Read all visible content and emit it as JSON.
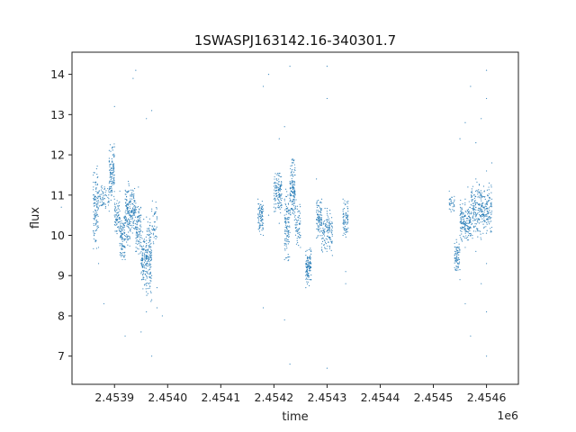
{
  "chart_data": {
    "type": "scatter",
    "title": "1SWASPJ163142.16-340301.7",
    "xlabel": "time",
    "ylabel": "flux",
    "x_multiplier_label": "1e6",
    "x_multiplier": 1000000,
    "xlim": [
      2.45382,
      2.45466
    ],
    "ylim": [
      6.3,
      14.55
    ],
    "x_ticks": [
      2.4539,
      2.454,
      2.4541,
      2.4542,
      2.4543,
      2.4544,
      2.4545,
      2.4546
    ],
    "x_tick_labels": [
      "2.4539",
      "2.4540",
      "2.4541",
      "2.4542",
      "2.4543",
      "2.4544",
      "2.4545",
      "2.4546"
    ],
    "y_ticks": [
      7,
      8,
      9,
      10,
      11,
      12,
      13,
      14
    ],
    "y_tick_labels": [
      "7",
      "8",
      "9",
      "10",
      "11",
      "12",
      "13",
      "14"
    ],
    "grid": false,
    "point_color": "#1f77b4",
    "series": [
      {
        "points": [
          [
            2.45386,
            11.5
          ],
          [
            2.45386,
            11.0
          ],
          [
            2.453865,
            10.6
          ],
          [
            2.45387,
            10.2
          ],
          [
            2.45387,
            9.7
          ],
          [
            2.45387,
            9.3
          ],
          [
            2.45388,
            8.3
          ],
          [
            2.453875,
            11.2
          ],
          [
            2.45388,
            10.8
          ],
          [
            2.4538,
            10.7
          ],
          [
            2.45389,
            11.3
          ],
          [
            2.45389,
            10.6
          ],
          [
            2.453895,
            11.9
          ],
          [
            2.4539,
            12.2
          ],
          [
            2.4539,
            11.5
          ],
          [
            2.4539,
            10.9
          ],
          [
            2.4539,
            13.2
          ],
          [
            2.45391,
            11.1
          ],
          [
            2.45391,
            10.4
          ],
          [
            2.45391,
            9.8
          ],
          [
            2.453915,
            9.5
          ],
          [
            2.45392,
            10.3
          ],
          [
            2.45392,
            9.9
          ],
          [
            2.45392,
            9.4
          ],
          [
            2.45392,
            7.5
          ],
          [
            2.45393,
            11.0
          ],
          [
            2.45393,
            10.5
          ],
          [
            2.45393,
            10.1
          ],
          [
            2.453935,
            13.9
          ],
          [
            2.45394,
            10.8
          ],
          [
            2.45394,
            10.2
          ],
          [
            2.45394,
            9.6
          ],
          [
            2.45394,
            14.1
          ],
          [
            2.453945,
            11.2
          ],
          [
            2.45395,
            10.5
          ],
          [
            2.45395,
            10.0
          ],
          [
            2.45395,
            9.3
          ],
          [
            2.45395,
            7.6
          ],
          [
            2.453955,
            10.4
          ],
          [
            2.45396,
            9.8
          ],
          [
            2.45396,
            9.0
          ],
          [
            2.45396,
            8.6
          ],
          [
            2.45396,
            8.1
          ],
          [
            2.45396,
            12.9
          ],
          [
            2.453965,
            10.1
          ],
          [
            2.45397,
            9.5
          ],
          [
            2.45397,
            9.0
          ],
          [
            2.45397,
            8.4
          ],
          [
            2.45397,
            10.6
          ],
          [
            2.45397,
            13.1
          ],
          [
            2.45397,
            7.0
          ],
          [
            2.45398,
            8.7
          ],
          [
            2.45398,
            8.2
          ],
          [
            2.45399,
            8.0
          ],
          [
            2.45417,
            10.9
          ],
          [
            2.45418,
            10.6
          ],
          [
            2.45418,
            10.3
          ],
          [
            2.45418,
            10.0
          ],
          [
            2.45418,
            8.2
          ],
          [
            2.45418,
            13.7
          ],
          [
            2.45419,
            10.5
          ],
          [
            2.45419,
            14.0
          ],
          [
            2.4542,
            11.3
          ],
          [
            2.4542,
            10.9
          ],
          [
            2.4542,
            10.7
          ],
          [
            2.454205,
            11.4
          ],
          [
            2.45421,
            11.0
          ],
          [
            2.45421,
            12.4
          ],
          [
            2.45421,
            10.3
          ],
          [
            2.45422,
            10.9
          ],
          [
            2.45422,
            10.5
          ],
          [
            2.45422,
            9.8
          ],
          [
            2.45422,
            9.4
          ],
          [
            2.45422,
            7.9
          ],
          [
            2.45422,
            12.7
          ],
          [
            2.45423,
            11.3
          ],
          [
            2.45423,
            11.0
          ],
          [
            2.45423,
            10.6
          ],
          [
            2.45423,
            6.8
          ],
          [
            2.45423,
            14.2
          ],
          [
            2.454235,
            11.9
          ],
          [
            2.45424,
            11.5
          ],
          [
            2.45424,
            10.7
          ],
          [
            2.45424,
            11.0
          ],
          [
            2.45425,
            10.0
          ],
          [
            2.45425,
            9.7
          ],
          [
            2.45426,
            9.6
          ],
          [
            2.45426,
            9.3
          ],
          [
            2.45426,
            9.0
          ],
          [
            2.45426,
            8.7
          ],
          [
            2.45427,
            9.2
          ],
          [
            2.45427,
            8.9
          ],
          [
            2.45427,
            9.6
          ],
          [
            2.45428,
            10.8
          ],
          [
            2.45428,
            10.4
          ],
          [
            2.45428,
            11.4
          ],
          [
            2.45429,
            10.9
          ],
          [
            2.45429,
            10.5
          ],
          [
            2.45429,
            10.1
          ],
          [
            2.45429,
            9.7
          ],
          [
            2.4543,
            10.6
          ],
          [
            2.4543,
            10.2
          ],
          [
            2.4543,
            9.9
          ],
          [
            2.4543,
            6.7
          ],
          [
            2.4543,
            14.2
          ],
          [
            2.4543,
            13.4
          ],
          [
            2.45431,
            10.3
          ],
          [
            2.45431,
            9.5
          ],
          [
            2.45433,
            10.9
          ],
          [
            2.45433,
            10.6
          ],
          [
            2.45433,
            10.3
          ],
          [
            2.45433,
            10.0
          ],
          [
            2.454335,
            9.1
          ],
          [
            2.454335,
            8.8
          ],
          [
            2.45453,
            11.1
          ],
          [
            2.45453,
            10.8
          ],
          [
            2.45454,
            9.8
          ],
          [
            2.45454,
            9.5
          ],
          [
            2.45454,
            9.2
          ],
          [
            2.45455,
            10.0
          ],
          [
            2.45455,
            12.4
          ],
          [
            2.45455,
            8.9
          ],
          [
            2.45456,
            10.9
          ],
          [
            2.45456,
            10.5
          ],
          [
            2.45456,
            10.1
          ],
          [
            2.45456,
            9.7
          ],
          [
            2.45456,
            8.3
          ],
          [
            2.45456,
            12.8
          ],
          [
            2.454565,
            11.2
          ],
          [
            2.45457,
            10.4
          ],
          [
            2.45457,
            10.0
          ],
          [
            2.45457,
            13.7
          ],
          [
            2.45457,
            7.5
          ],
          [
            2.45458,
            11.4
          ],
          [
            2.45458,
            10.7
          ],
          [
            2.45458,
            10.1
          ],
          [
            2.45458,
            9.6
          ],
          [
            2.45458,
            12.3
          ],
          [
            2.45459,
            11.0
          ],
          [
            2.45459,
            10.5
          ],
          [
            2.45459,
            9.9
          ],
          [
            2.45459,
            8.8
          ],
          [
            2.45459,
            12.9
          ],
          [
            2.4546,
            10.8
          ],
          [
            2.4546,
            10.4
          ],
          [
            2.4546,
            11.6
          ],
          [
            2.4546,
            9.3
          ],
          [
            2.4546,
            8.1
          ],
          [
            2.4546,
            7.0
          ],
          [
            2.4546,
            14.1
          ],
          [
            2.4546,
            13.4
          ],
          [
            2.454605,
            11.3
          ],
          [
            2.45461,
            10.9
          ],
          [
            2.45461,
            10.6
          ],
          [
            2.45461,
            10.2
          ],
          [
            2.45461,
            11.8
          ]
        ],
        "segments": [
          {
            "x": [
              2.45386,
              2.45387
            ],
            "y": [
              9.6,
              11.8
            ],
            "density": 110
          },
          {
            "x": [
              2.45387,
              2.45389
            ],
            "y": [
              10.6,
              11.3
            ],
            "density": 60
          },
          {
            "x": [
              2.45389,
              2.4539
            ],
            "y": [
              10.7,
              12.4
            ],
            "density": 110
          },
          {
            "x": [
              2.4539,
              2.45391
            ],
            "y": [
              9.9,
              11.0
            ],
            "density": 70
          },
          {
            "x": [
              2.45391,
              2.45392
            ],
            "y": [
              9.3,
              10.5
            ],
            "density": 90
          },
          {
            "x": [
              2.45392,
              2.45393
            ],
            "y": [
              9.7,
              11.4
            ],
            "density": 120
          },
          {
            "x": [
              2.45393,
              2.45394
            ],
            "y": [
              10.0,
              11.2
            ],
            "density": 90
          },
          {
            "x": [
              2.45394,
              2.45395
            ],
            "y": [
              9.4,
              10.9
            ],
            "density": 90
          },
          {
            "x": [
              2.45395,
              2.45396
            ],
            "y": [
              8.6,
              10.2
            ],
            "density": 110
          },
          {
            "x": [
              2.45396,
              2.45397
            ],
            "y": [
              8.2,
              10.6
            ],
            "density": 130
          },
          {
            "x": [
              2.45397,
              2.45398
            ],
            "y": [
              9.6,
              11.0
            ],
            "density": 40
          },
          {
            "x": [
              2.45417,
              2.45418
            ],
            "y": [
              10.0,
              10.9
            ],
            "density": 80
          },
          {
            "x": [
              2.4542,
              2.454215
            ],
            "y": [
              10.5,
              11.6
            ],
            "density": 120
          },
          {
            "x": [
              2.45422,
              2.45423
            ],
            "y": [
              9.3,
              11.2
            ],
            "density": 110
          },
          {
            "x": [
              2.45423,
              2.45424
            ],
            "y": [
              10.3,
              12.0
            ],
            "density": 130
          },
          {
            "x": [
              2.45424,
              2.45425
            ],
            "y": [
              9.7,
              10.9
            ],
            "density": 60
          },
          {
            "x": [
              2.45426,
              2.45427
            ],
            "y": [
              8.7,
              9.7
            ],
            "density": 110
          },
          {
            "x": [
              2.45428,
              2.45429
            ],
            "y": [
              9.9,
              11.0
            ],
            "density": 90
          },
          {
            "x": [
              2.45429,
              2.45431
            ],
            "y": [
              9.5,
              10.7
            ],
            "density": 120
          },
          {
            "x": [
              2.45433,
              2.45434
            ],
            "y": [
              9.9,
              10.9
            ],
            "density": 70
          },
          {
            "x": [
              2.45453,
              2.45454
            ],
            "y": [
              10.5,
              11.1
            ],
            "density": 30
          },
          {
            "x": [
              2.45454,
              2.45455
            ],
            "y": [
              9.0,
              9.9
            ],
            "density": 70
          },
          {
            "x": [
              2.45455,
              2.45457
            ],
            "y": [
              9.8,
              10.9
            ],
            "density": 160
          },
          {
            "x": [
              2.45457,
              2.45459
            ],
            "y": [
              9.9,
              11.4
            ],
            "density": 150
          },
          {
            "x": [
              2.45459,
              2.45461
            ],
            "y": [
              10.0,
              11.3
            ],
            "density": 140
          }
        ]
      }
    ]
  }
}
